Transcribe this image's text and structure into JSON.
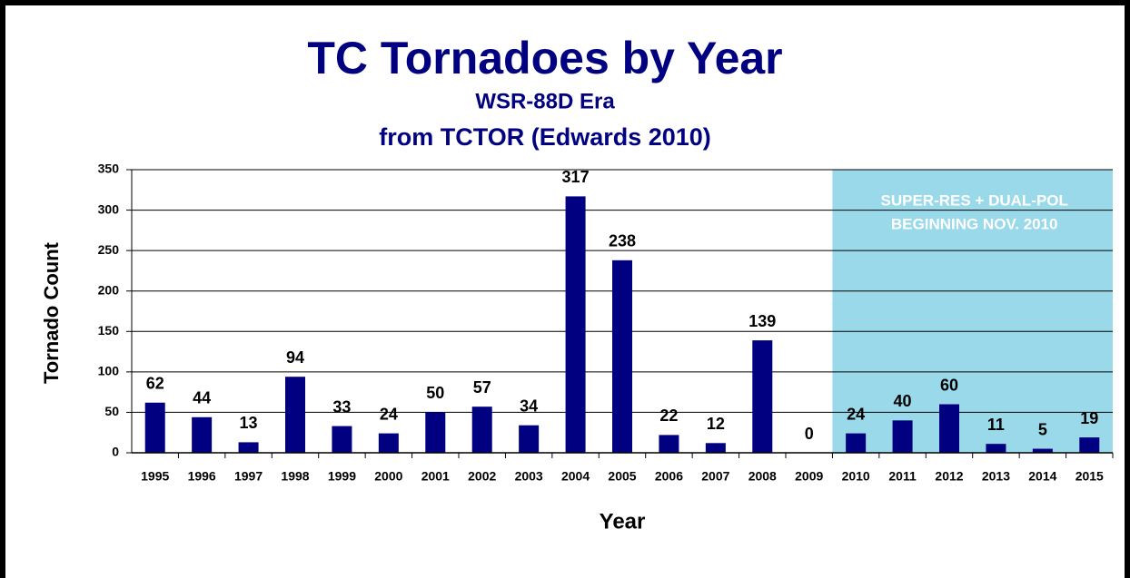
{
  "chart_data": {
    "type": "bar",
    "title": "TC Tornadoes by Year",
    "subtitle": [
      "WSR-88D Era",
      "from TCTOR (Edwards 2010)"
    ],
    "x_label": "Year",
    "y_label": "Tornado Count",
    "categories": [
      "1995",
      "1996",
      "1997",
      "1998",
      "1999",
      "2000",
      "2001",
      "2002",
      "2003",
      "2004",
      "2005",
      "2006",
      "2007",
      "2008",
      "2009",
      "2010",
      "2011",
      "2012",
      "2013",
      "2014",
      "2015"
    ],
    "values": [
      62,
      44,
      13,
      94,
      33,
      24,
      50,
      57,
      34,
      317,
      238,
      22,
      12,
      139,
      0,
      24,
      40,
      60,
      11,
      5,
      19
    ],
    "color": "#000080",
    "ylim": [
      0,
      350
    ],
    "yticks": [
      0,
      50,
      100,
      150,
      200,
      250,
      300,
      350
    ],
    "grid": true,
    "highlight": {
      "from": "2010",
      "color": "#99d9ea",
      "text": [
        "SUPER-RES + DUAL-POL",
        "BEGINNING NOV. 2010"
      ]
    }
  }
}
